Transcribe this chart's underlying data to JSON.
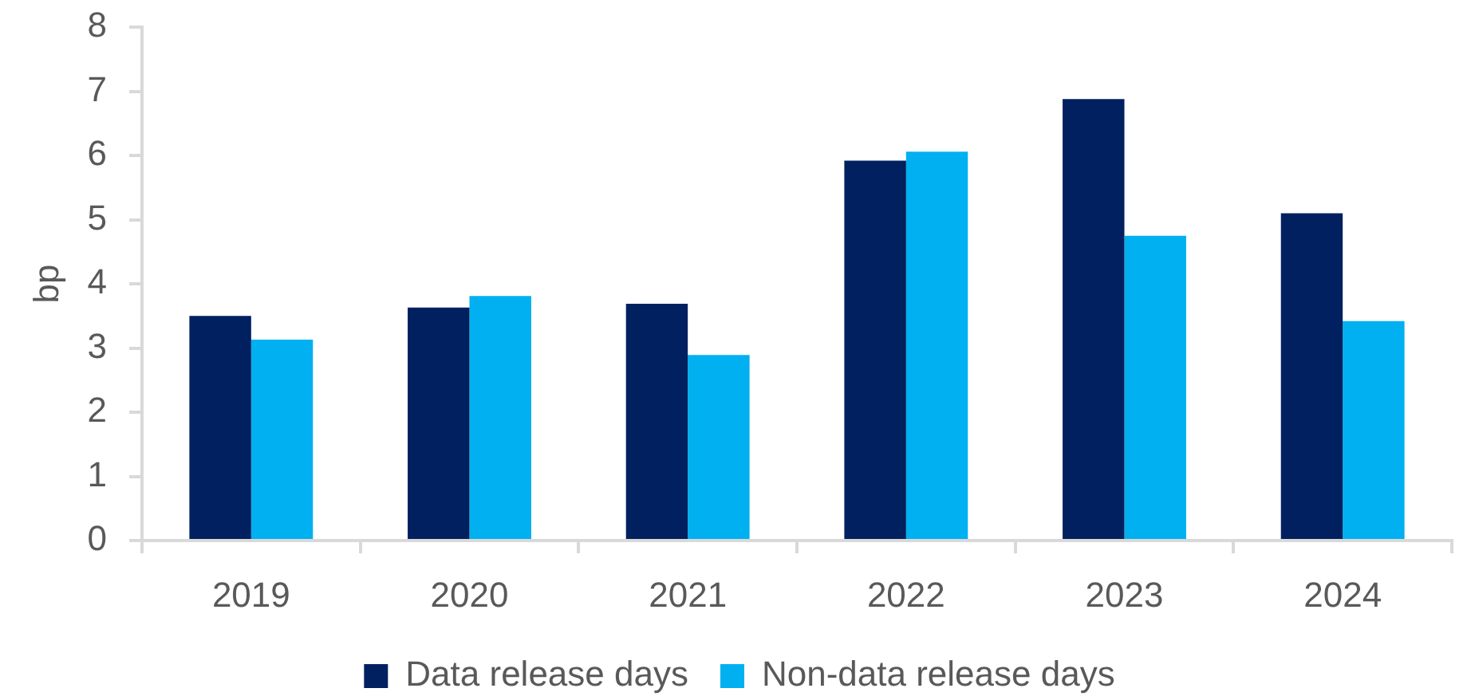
{
  "chart_data": {
    "type": "bar",
    "ylabel": "bp",
    "categories": [
      "2019",
      "2020",
      "2021",
      "2022",
      "2023",
      "2024"
    ],
    "series": [
      {
        "name": "Data release days",
        "color": "#002060",
        "values": [
          3.5,
          3.63,
          3.69,
          5.92,
          6.88,
          5.1
        ]
      },
      {
        "name": "Non-data release days",
        "color": "#00b0f0",
        "values": [
          3.13,
          3.81,
          2.89,
          6.06,
          4.75,
          3.42
        ]
      }
    ],
    "ylim": [
      0,
      8
    ],
    "yticks": [
      0,
      1,
      2,
      3,
      4,
      5,
      6,
      7,
      8
    ],
    "grid": false,
    "legend": "bottom"
  }
}
